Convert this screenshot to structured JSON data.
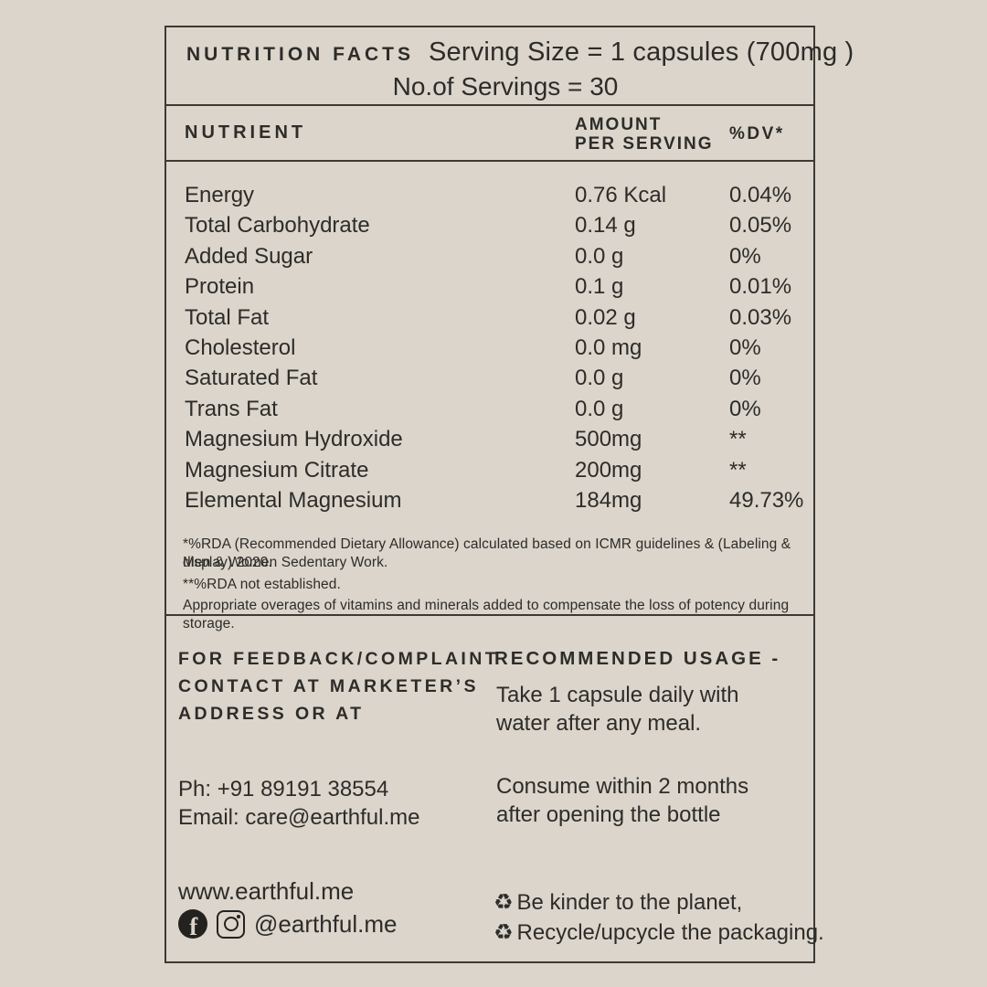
{
  "colors": {
    "background": "#dbd5cb",
    "ink": "#2d2c29",
    "border": "#3c3a34"
  },
  "header": {
    "title": "NUTRITION FACTS",
    "serving_size": "Serving Size = 1 capsules (700mg )",
    "servings": "No.of Servings = 30"
  },
  "table": {
    "columns": {
      "nutrient": "NUTRIENT",
      "amount_line1": "AMOUNT",
      "amount_line2": "PER SERVING",
      "dv": "%DV*"
    },
    "rows": [
      {
        "nutrient": "Energy",
        "amount": "0.76 Kcal",
        "dv": "0.04%"
      },
      {
        "nutrient": "Total Carbohydrate",
        "amount": "0.14 g",
        "dv": "0.05%"
      },
      {
        "nutrient": "Added Sugar",
        "amount": "0.0 g",
        "dv": "0%"
      },
      {
        "nutrient": "Protein",
        "amount": "0.1 g",
        "dv": "0.01%"
      },
      {
        "nutrient": "Total Fat",
        "amount": "0.02 g",
        "dv": "0.03%"
      },
      {
        "nutrient": "Cholesterol",
        "amount": "0.0 mg",
        "dv": "0%"
      },
      {
        "nutrient": "Saturated Fat",
        "amount": "0.0 g",
        "dv": "0%"
      },
      {
        "nutrient": "Trans Fat",
        "amount": "0.0 g",
        "dv": "0%"
      },
      {
        "nutrient": "Magnesium Hydroxide",
        "amount": "500mg",
        "dv": "**"
      },
      {
        "nutrient": "Magnesium Citrate",
        "amount": "200mg",
        "dv": "**"
      },
      {
        "nutrient": "Elemental Magnesium",
        "amount": "184mg",
        "dv": "49.73%"
      }
    ]
  },
  "footnotes": {
    "line1": "*%RDA (Recommended Dietary Allowance) calculated based on ICMR guidelines & (Labeling & display) 2020.",
    "line2": "Men & Women Sedentary Work.",
    "line3": "**%RDA not established.",
    "line4": "Appropriate overages of vitamins and minerals added to compensate the loss of potency during storage."
  },
  "footer": {
    "feedback_heading_line1": "FOR FEEDBACK/COMPLAINT",
    "feedback_heading_line2": "CONTACT AT MARKETER’S",
    "feedback_heading_line3": "ADDRESS OR AT",
    "phone": "Ph: +91 89191 38554",
    "email": "Email: care@earthful.me",
    "website": "www.earthful.me",
    "social_handle": "@earthful.me",
    "usage_heading": "RECOMMENDED USAGE -",
    "usage_line1": "Take 1 capsule daily with",
    "usage_line2": "water after any meal.",
    "consume_line1": "Consume within 2 months",
    "consume_line2": "after opening the bottle",
    "recycle_line1": "Be kinder to the planet,",
    "recycle_line2": "Recycle/upcycle the packaging."
  },
  "icons": {
    "facebook_letter": "f",
    "recycle_symbol": "♻"
  }
}
